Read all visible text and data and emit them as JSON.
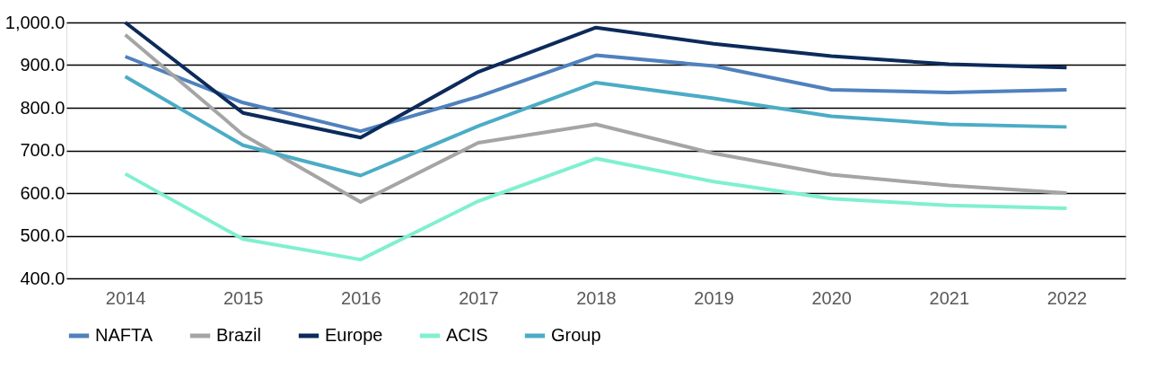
{
  "chart_data": {
    "type": "line",
    "categories": [
      "2014",
      "2015",
      "2016",
      "2017",
      "2018",
      "2019",
      "2020",
      "2021",
      "2022"
    ],
    "series": [
      {
        "name": "NAFTA",
        "color": "#4f81bd",
        "values": [
          920,
          812,
          745,
          826,
          923,
          898,
          842,
          836,
          842
        ]
      },
      {
        "name": "Brazil",
        "color": "#a5a5a5",
        "values": [
          971,
          737,
          579,
          718,
          761,
          693,
          643,
          618,
          600
        ]
      },
      {
        "name": "Europe",
        "color": "#0c2a5b",
        "values": [
          1000,
          788,
          730,
          884,
          988,
          950,
          921,
          902,
          894
        ]
      },
      {
        "name": "ACIS",
        "color": "#7ff0d0",
        "values": [
          645,
          492,
          444,
          581,
          681,
          627,
          587,
          571,
          564
        ]
      },
      {
        "name": "Group",
        "color": "#4bacc6",
        "values": [
          873,
          712,
          641,
          757,
          859,
          822,
          780,
          761,
          755
        ]
      }
    ],
    "ylim": [
      400,
      1000
    ],
    "yticks": [
      {
        "value": 400,
        "label": "400.0"
      },
      {
        "value": 500,
        "label": "500.0"
      },
      {
        "value": 600,
        "label": "600.0"
      },
      {
        "value": 700,
        "label": "700.0"
      },
      {
        "value": 800,
        "label": "800.0"
      },
      {
        "value": 900,
        "label": "900.0"
      },
      {
        "value": 1000,
        "label": "1,000.0"
      }
    ],
    "grid": "y",
    "legend": "bottom",
    "marker": "none",
    "line_style": "solid"
  }
}
